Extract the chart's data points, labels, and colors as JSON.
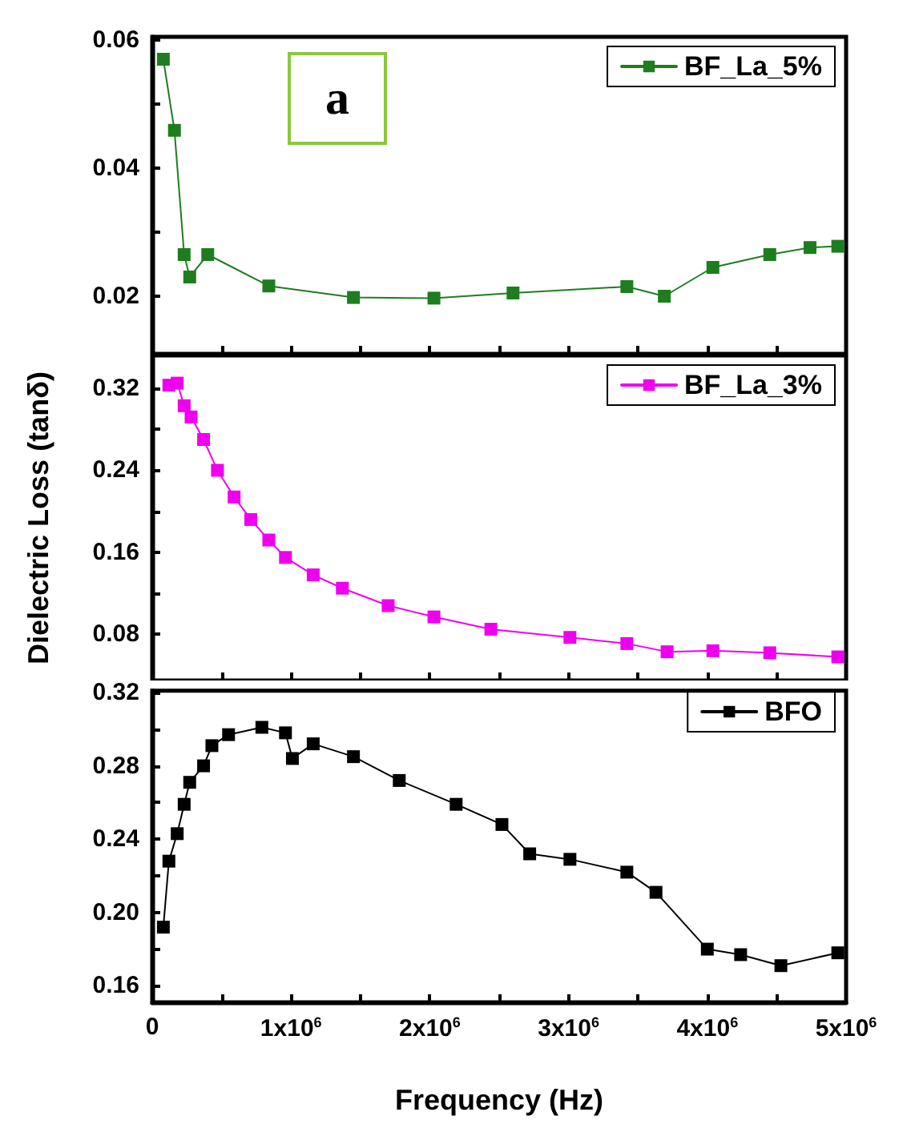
{
  "chart_data": [
    {
      "type": "line",
      "annotations": [
        "a"
      ],
      "x": [
        80000,
        160000,
        230000,
        270000,
        400000,
        840000,
        1450000,
        2030000,
        2600000,
        3420000,
        3690000,
        4040000,
        4450000,
        4740000,
        4940000
      ],
      "series": [
        {
          "name": "BF_La_5%",
          "color": "#1e7d1e",
          "values": [
            0.057,
            0.0459,
            0.0265,
            0.023,
            0.0265,
            0.0216,
            0.0198,
            0.0197,
            0.0205,
            0.0215,
            0.02,
            0.0245,
            0.0265,
            0.0276,
            0.0278
          ]
        }
      ],
      "xlim": [
        0,
        5000000
      ],
      "ylim": [
        0.011,
        0.0605
      ],
      "xticks": [
        0,
        {
          "value": 500000,
          "label": null
        },
        1000000,
        {
          "value": 1500000,
          "label": null
        },
        2000000,
        {
          "value": 2500000,
          "label": null
        },
        3000000,
        {
          "value": 3500000,
          "label": null
        },
        4000000,
        {
          "value": 4500000,
          "label": null
        },
        5000000
      ],
      "yticks": [
        {
          "value": 0.02,
          "label": "0.02"
        },
        {
          "value": 0.03,
          "label": null
        },
        {
          "value": 0.04,
          "label": "0.04"
        },
        {
          "value": 0.05,
          "label": null
        },
        {
          "value": 0.06,
          "label": "0.06"
        }
      ],
      "tick_labels": "y",
      "legend": "top right",
      "marker": "square",
      "line_style": "solid",
      "grid": false
    },
    {
      "type": "line",
      "ylabel": "Dielectric Loss (tanδ)",
      "x": [
        120000,
        180000,
        230000,
        280000,
        370000,
        470000,
        590000,
        710000,
        840000,
        960000,
        1160000,
        1370000,
        1700000,
        2030000,
        2440000,
        3010000,
        3420000,
        3710000,
        4040000,
        4450000,
        4940000
      ],
      "series": [
        {
          "name": "BF_La_3%",
          "color": "#ee00ee",
          "values": [
            0.323,
            0.325,
            0.303,
            0.292,
            0.27,
            0.24,
            0.214,
            0.192,
            0.172,
            0.155,
            0.138,
            0.125,
            0.108,
            0.097,
            0.085,
            0.077,
            0.071,
            0.063,
            0.064,
            0.062,
            0.058
          ]
        }
      ],
      "xlim": [
        0,
        5000000
      ],
      "ylim": [
        0.035,
        0.352
      ],
      "xticks": [
        0,
        {
          "value": 500000,
          "label": null
        },
        1000000,
        {
          "value": 1500000,
          "label": null
        },
        2000000,
        {
          "value": 2500000,
          "label": null
        },
        3000000,
        {
          "value": 3500000,
          "label": null
        },
        4000000,
        {
          "value": 4500000,
          "label": null
        },
        5000000
      ],
      "yticks": [
        {
          "value": 0.08,
          "label": "0.08"
        },
        {
          "value": 0.12,
          "label": null
        },
        {
          "value": 0.16,
          "label": "0.16"
        },
        {
          "value": 0.2,
          "label": null
        },
        {
          "value": 0.24,
          "label": "0.24"
        },
        {
          "value": 0.28,
          "label": null
        },
        {
          "value": 0.32,
          "label": "0.32"
        }
      ],
      "tick_labels": "y",
      "legend": "top right",
      "marker": "square",
      "line_style": "solid",
      "grid": false
    },
    {
      "type": "line",
      "xlabel": "Frequency (Hz)",
      "x": [
        80000,
        120000,
        180000,
        230000,
        270000,
        370000,
        430000,
        550000,
        790000,
        960000,
        1010000,
        1160000,
        1450000,
        1780000,
        2190000,
        2520000,
        2720000,
        3010000,
        3420000,
        3630000,
        4000000,
        4240000,
        4530000,
        4940000
      ],
      "series": [
        {
          "name": "BFO",
          "color": "#000000",
          "values": [
            0.192,
            0.228,
            0.243,
            0.259,
            0.271,
            0.28,
            0.291,
            0.297,
            0.301,
            0.298,
            0.284,
            0.292,
            0.285,
            0.272,
            0.259,
            0.248,
            0.232,
            0.229,
            0.222,
            0.211,
            0.18,
            0.177,
            0.171,
            0.178
          ]
        }
      ],
      "xlim": [
        0,
        5000000
      ],
      "ylim": [
        0.151,
        0.321
      ],
      "xticks": [
        0,
        {
          "value": 500000,
          "label": null
        },
        {
          "value": 1000000,
          "label": "1x10$^{6}$"
        },
        {
          "value": 1500000,
          "label": null
        },
        {
          "value": 2000000,
          "label": "2x10$^{6}$"
        },
        {
          "value": 2500000,
          "label": null
        },
        {
          "value": 3000000,
          "label": "3x10$^{6}$"
        },
        {
          "value": 3500000,
          "label": null
        },
        {
          "value": 4000000,
          "label": "4x10$^{6}$"
        },
        {
          "value": 4500000,
          "label": null
        },
        {
          "value": 5000000,
          "label": "5x10$^{6}$"
        }
      ],
      "yticks": [
        {
          "value": 0.16,
          "label": "0.16"
        },
        {
          "value": 0.18,
          "label": null
        },
        {
          "value": 0.2,
          "label": "0.20"
        },
        {
          "value": 0.22,
          "label": null
        },
        {
          "value": 0.24,
          "label": "0.24"
        },
        {
          "value": 0.26,
          "label": null
        },
        {
          "value": 0.28,
          "label": "0.28"
        },
        {
          "value": 0.3,
          "label": null
        },
        {
          "value": 0.32,
          "label": "0.32"
        }
      ],
      "legend": "top right",
      "marker": "square",
      "line_style": "solid",
      "grid": false
    }
  ]
}
